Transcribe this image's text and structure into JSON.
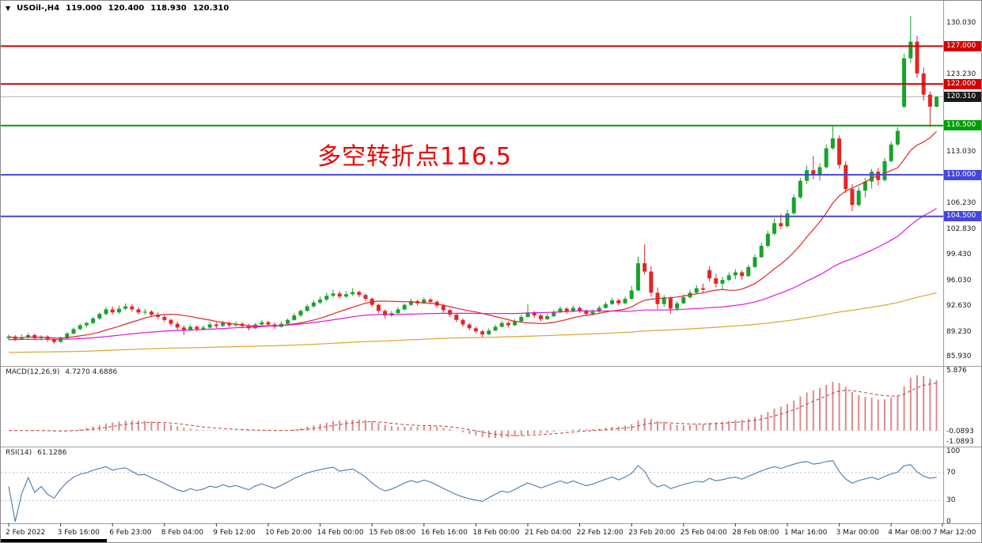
{
  "header": {
    "symbol_period": "USOil-,H4",
    "open": "119.000",
    "high": "120.400",
    "low": "118.930",
    "close": "120.310"
  },
  "annotation": {
    "text": "多空转折点116.5",
    "color": "#ee0000"
  },
  "colors": {
    "up": "#17a32b",
    "down": "#e42525",
    "bid_line": "#b5b5b5",
    "bid_badge": "#1a1a1a",
    "macd_hist": "#d98b8b",
    "macd_signal": "#c43b3b",
    "rsi_line": "#4a7aad",
    "level_dotted": "#bbbbbb",
    "divider": "#9e9e9e"
  },
  "chart_data": {
    "type": "candlestick",
    "symbol": "USOil-",
    "timeframe": "H4",
    "title": "USOil-,H4 119.000 120.400 118.930 120.310",
    "price_axis": {
      "ticks": [
        130.03,
        123.23,
        113.03,
        106.23,
        102.83,
        99.43,
        96.03,
        92.63,
        89.23,
        85.93
      ]
    },
    "hlines": [
      {
        "price": 127.0,
        "label": "127.000",
        "color": "#d40000",
        "width": 2
      },
      {
        "price": 122.0,
        "label": "122.000",
        "color": "#d40000",
        "width": 2
      },
      {
        "price": 116.5,
        "label": "116.500",
        "color": "#00a000",
        "width": 2
      },
      {
        "price": 110.0,
        "label": "110.000",
        "color": "#4545e0",
        "width": 2
      },
      {
        "price": 104.5,
        "label": "104.500",
        "color": "#4545e0",
        "width": 2
      }
    ],
    "bid": {
      "price": 120.31,
      "label": "120.310"
    },
    "moving_averages": [
      {
        "name": "fast",
        "window": 14,
        "color": "#e42525",
        "pad": null
      },
      {
        "name": "mid",
        "window": 45,
        "color": "#e014e0",
        "pad": 88.2
      },
      {
        "name": "slow",
        "window": 170,
        "color": "#dca52f",
        "pad": 86.5
      }
    ],
    "indicators": {
      "macd": {
        "name": "MACD(12,26,9)",
        "values": "4.7270 4.6886",
        "axis": [
          "5.876",
          "-0.0893",
          "-1.0893"
        ],
        "axis_values": [
          5.876,
          -0.0893,
          -1.0893
        ]
      },
      "rsi": {
        "name": "RSI(14)",
        "values": "61.1286",
        "axis": [
          "100",
          "70",
          "30",
          "0"
        ],
        "axis_values": [
          100,
          70,
          30,
          0
        ],
        "levels": [
          70,
          30
        ]
      }
    },
    "time_axis": [
      "2 Feb 2022",
      "3 Feb 16:00",
      "6 Feb 23:00",
      "8 Feb 04:00",
      "9 Feb 12:00",
      "10 Feb 20:00",
      "14 Feb 00:00",
      "15 Feb 08:00",
      "16 Feb 16:00",
      "18 Feb 00:00",
      "21 Feb 04:00",
      "22 Feb 12:00",
      "23 Feb 20:00",
      "25 Feb 04:00",
      "28 Feb 08:00",
      "1 Mar 16:00",
      "3 Mar 00:00",
      "4 Mar 08:00",
      "7 Mar 12:00"
    ],
    "candles": [
      [
        88.4,
        88.9,
        88.1,
        88.6
      ],
      [
        88.6,
        88.8,
        88.0,
        88.3
      ],
      [
        88.3,
        88.9,
        88.2,
        88.5
      ],
      [
        88.5,
        89.1,
        88.3,
        88.8
      ],
      [
        88.8,
        89.0,
        88.2,
        88.4
      ],
      [
        88.4,
        88.8,
        88.1,
        88.6
      ],
      [
        88.6,
        88.8,
        87.9,
        88.2
      ],
      [
        88.2,
        88.5,
        87.6,
        87.9
      ],
      [
        87.9,
        88.6,
        87.8,
        88.4
      ],
      [
        88.4,
        89.2,
        88.3,
        89.0
      ],
      [
        89.0,
        89.8,
        88.9,
        89.6
      ],
      [
        89.6,
        90.3,
        89.4,
        90.1
      ],
      [
        90.1,
        90.6,
        89.8,
        90.4
      ],
      [
        90.4,
        91.2,
        90.2,
        91.0
      ],
      [
        91.0,
        91.8,
        90.8,
        91.6
      ],
      [
        91.6,
        92.5,
        91.4,
        92.2
      ],
      [
        92.2,
        92.6,
        91.5,
        91.8
      ],
      [
        91.8,
        92.7,
        91.6,
        92.3
      ],
      [
        92.3,
        93.0,
        92.1,
        92.6
      ],
      [
        92.6,
        92.9,
        91.9,
        92.2
      ],
      [
        92.2,
        92.5,
        91.5,
        91.8
      ],
      [
        91.8,
        92.3,
        91.5,
        91.9
      ],
      [
        91.9,
        92.1,
        91.2,
        91.5
      ],
      [
        91.5,
        91.8,
        90.9,
        91.2
      ],
      [
        91.2,
        91.5,
        90.5,
        90.8
      ],
      [
        90.8,
        91.0,
        90.0,
        90.3
      ],
      [
        90.3,
        90.6,
        89.5,
        89.8
      ],
      [
        89.8,
        90.1,
        88.8,
        89.5
      ],
      [
        89.5,
        90.2,
        89.3,
        89.9
      ],
      [
        89.9,
        90.1,
        89.3,
        89.6
      ],
      [
        89.6,
        90.1,
        89.4,
        89.8
      ],
      [
        89.8,
        90.5,
        89.7,
        90.2
      ],
      [
        90.2,
        90.5,
        89.7,
        90.0
      ],
      [
        90.0,
        90.7,
        89.9,
        90.4
      ],
      [
        90.4,
        90.6,
        89.8,
        90.1
      ],
      [
        90.1,
        90.6,
        89.9,
        90.3
      ],
      [
        90.3,
        90.5,
        89.7,
        90.0
      ],
      [
        90.0,
        90.3,
        89.4,
        89.7
      ],
      [
        89.7,
        90.4,
        89.6,
        90.2
      ],
      [
        90.2,
        90.8,
        90.0,
        90.5
      ],
      [
        90.5,
        90.7,
        90.0,
        90.2
      ],
      [
        90.2,
        90.5,
        89.6,
        89.9
      ],
      [
        89.9,
        90.6,
        89.8,
        90.3
      ],
      [
        90.3,
        91.0,
        90.2,
        90.8
      ],
      [
        90.8,
        91.7,
        90.7,
        91.4
      ],
      [
        91.4,
        92.2,
        91.2,
        92.0
      ],
      [
        92.0,
        92.9,
        91.9,
        92.6
      ],
      [
        92.6,
        93.4,
        92.4,
        93.1
      ],
      [
        93.1,
        93.9,
        92.9,
        93.5
      ],
      [
        93.5,
        94.4,
        93.3,
        94.0
      ],
      [
        94.0,
        94.8,
        93.8,
        94.3
      ],
      [
        94.3,
        94.6,
        93.6,
        93.9
      ],
      [
        93.9,
        94.6,
        93.7,
        94.2
      ],
      [
        94.2,
        95.0,
        94.0,
        94.5
      ],
      [
        94.5,
        94.7,
        93.8,
        94.1
      ],
      [
        94.1,
        94.3,
        93.3,
        93.6
      ],
      [
        93.6,
        93.8,
        92.5,
        92.8
      ],
      [
        92.8,
        93.0,
        91.7,
        92.0
      ],
      [
        92.0,
        92.2,
        91.0,
        91.4
      ],
      [
        91.4,
        92.0,
        91.2,
        91.7
      ],
      [
        91.7,
        92.5,
        91.6,
        92.2
      ],
      [
        92.2,
        93.0,
        92.0,
        92.8
      ],
      [
        92.8,
        93.6,
        92.6,
        93.3
      ],
      [
        93.3,
        93.5,
        92.7,
        93.0
      ],
      [
        93.0,
        93.8,
        92.9,
        93.5
      ],
      [
        93.5,
        93.7,
        92.9,
        93.2
      ],
      [
        93.2,
        93.4,
        92.4,
        92.7
      ],
      [
        92.7,
        92.9,
        91.8,
        92.1
      ],
      [
        92.1,
        92.3,
        91.2,
        91.5
      ],
      [
        91.5,
        91.7,
        90.5,
        90.8
      ],
      [
        90.8,
        91.0,
        89.9,
        90.2
      ],
      [
        90.2,
        90.4,
        89.4,
        89.7
      ],
      [
        89.7,
        89.9,
        89.0,
        89.3
      ],
      [
        89.3,
        89.5,
        88.5,
        88.9
      ],
      [
        88.9,
        89.7,
        88.8,
        89.4
      ],
      [
        89.4,
        90.2,
        89.3,
        89.9
      ],
      [
        89.9,
        90.7,
        89.8,
        90.4
      ],
      [
        90.4,
        90.6,
        89.8,
        90.1
      ],
      [
        90.1,
        90.9,
        90.0,
        90.6
      ],
      [
        90.6,
        91.5,
        90.5,
        91.2
      ],
      [
        91.2,
        92.9,
        91.1,
        91.8
      ],
      [
        91.8,
        92.0,
        91.1,
        91.4
      ],
      [
        91.4,
        91.6,
        90.6,
        90.9
      ],
      [
        90.9,
        91.6,
        90.8,
        91.3
      ],
      [
        91.3,
        92.1,
        91.2,
        91.8
      ],
      [
        91.8,
        92.6,
        91.7,
        92.3
      ],
      [
        92.3,
        92.5,
        91.6,
        91.9
      ],
      [
        91.9,
        92.7,
        91.8,
        92.4
      ],
      [
        92.4,
        92.6,
        91.7,
        92.0
      ],
      [
        92.0,
        92.2,
        91.3,
        91.6
      ],
      [
        91.6,
        92.2,
        91.4,
        91.9
      ],
      [
        91.9,
        92.7,
        91.8,
        92.4
      ],
      [
        92.4,
        93.2,
        92.3,
        92.9
      ],
      [
        92.9,
        93.7,
        92.8,
        93.4
      ],
      [
        93.4,
        93.6,
        92.7,
        93.0
      ],
      [
        93.0,
        93.9,
        92.9,
        93.6
      ],
      [
        93.6,
        95.3,
        93.5,
        94.7
      ],
      [
        94.7,
        99.2,
        94.6,
        98.3
      ],
      [
        98.3,
        100.8,
        96.8,
        97.2
      ],
      [
        97.2,
        97.9,
        93.9,
        94.4
      ],
      [
        94.4,
        95.1,
        92.2,
        92.9
      ],
      [
        92.9,
        94.1,
        92.5,
        93.7
      ],
      [
        93.7,
        93.9,
        91.6,
        92.3
      ],
      [
        92.3,
        93.3,
        92.0,
        93.0
      ],
      [
        93.0,
        94.2,
        92.9,
        93.8
      ],
      [
        93.8,
        94.8,
        93.6,
        94.4
      ],
      [
        94.4,
        95.4,
        94.2,
        95.0
      ],
      [
        95.0,
        95.6,
        94.4,
        94.8
      ],
      [
        97.4,
        97.9,
        95.9,
        96.3
      ],
      [
        96.3,
        96.9,
        95.1,
        95.6
      ],
      [
        95.6,
        96.5,
        94.8,
        96.1
      ],
      [
        96.1,
        97.1,
        95.9,
        96.7
      ],
      [
        96.7,
        97.5,
        96.2,
        97.1
      ],
      [
        97.1,
        97.4,
        96.1,
        96.6
      ],
      [
        96.6,
        98.1,
        96.5,
        97.8
      ],
      [
        97.8,
        99.5,
        97.7,
        99.1
      ],
      [
        99.1,
        101.0,
        99.0,
        100.6
      ],
      [
        100.6,
        102.6,
        100.4,
        102.2
      ],
      [
        102.2,
        104.2,
        102.0,
        103.6
      ],
      [
        103.6,
        104.8,
        102.8,
        103.2
      ],
      [
        103.2,
        105.4,
        103.0,
        104.9
      ],
      [
        104.9,
        107.4,
        104.7,
        107.0
      ],
      [
        107.0,
        109.6,
        106.8,
        109.2
      ],
      [
        109.2,
        111.2,
        108.8,
        110.6
      ],
      [
        110.6,
        112.5,
        109.4,
        109.9
      ],
      [
        109.9,
        111.5,
        109.2,
        111.0
      ],
      [
        111.0,
        114.0,
        110.8,
        113.5
      ],
      [
        113.5,
        116.6,
        113.3,
        114.8
      ],
      [
        114.8,
        115.2,
        110.8,
        111.3
      ],
      [
        111.3,
        111.8,
        107.6,
        108.1
      ],
      [
        108.1,
        108.8,
        105.2,
        106.0
      ],
      [
        106.0,
        108.4,
        105.8,
        107.9
      ],
      [
        107.9,
        109.6,
        107.0,
        109.1
      ],
      [
        109.1,
        110.8,
        108.2,
        110.4
      ],
      [
        110.4,
        110.9,
        108.6,
        109.3
      ],
      [
        109.3,
        112.2,
        109.1,
        111.8
      ],
      [
        111.8,
        114.4,
        111.6,
        114.0
      ],
      [
        114.0,
        116.3,
        113.8,
        115.8
      ],
      [
        119.0,
        126.0,
        118.8,
        125.4
      ],
      [
        125.4,
        131.0,
        124.8,
        127.6
      ],
      [
        127.6,
        128.4,
        122.8,
        123.4
      ],
      [
        123.4,
        124.2,
        119.8,
        120.6
      ],
      [
        120.6,
        121.0,
        116.3,
        119.0
      ],
      [
        119.0,
        120.4,
        118.93,
        120.31
      ]
    ]
  }
}
